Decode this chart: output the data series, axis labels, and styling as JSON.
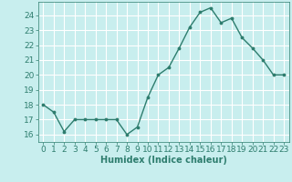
{
  "x": [
    0,
    1,
    2,
    3,
    4,
    5,
    6,
    7,
    8,
    9,
    10,
    11,
    12,
    13,
    14,
    15,
    16,
    17,
    18,
    19,
    20,
    21,
    22,
    23
  ],
  "y": [
    18,
    17.5,
    16.2,
    17,
    17,
    17,
    17,
    17,
    16,
    16.5,
    18.5,
    20,
    20.5,
    21.8,
    23.2,
    24.2,
    24.5,
    23.5,
    23.8,
    22.5,
    21.8,
    21,
    20,
    20
  ],
  "line_color": "#2e7d6e",
  "bg_color": "#c8eeee",
  "grid_color": "#ffffff",
  "axis_color": "#2e7d6e",
  "xlabel": "Humidex (Indice chaleur)",
  "xlabel_fontsize": 7,
  "tick_fontsize": 6.5,
  "ylim": [
    15.5,
    24.9
  ],
  "xlim": [
    -0.5,
    23.5
  ],
  "yticks": [
    16,
    17,
    18,
    19,
    20,
    21,
    22,
    23,
    24
  ],
  "xticks": [
    0,
    1,
    2,
    3,
    4,
    5,
    6,
    7,
    8,
    9,
    10,
    11,
    12,
    13,
    14,
    15,
    16,
    17,
    18,
    19,
    20,
    21,
    22,
    23
  ]
}
